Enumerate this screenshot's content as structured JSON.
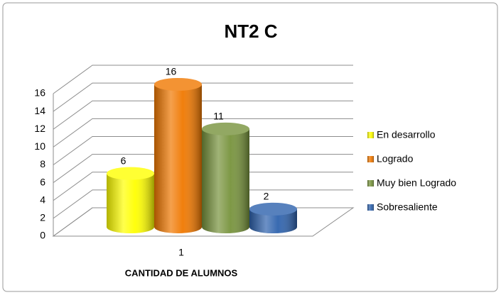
{
  "chart_data": {
    "type": "bar3d",
    "title": "NT2 C",
    "x_label": "CANTIDAD DE ALUMNOS",
    "categories": [
      "1"
    ],
    "series": [
      {
        "name": "En desarrollo",
        "color": "#ffff00",
        "values": [
          6
        ]
      },
      {
        "name": "Logrado",
        "color": "#f07800",
        "values": [
          16
        ]
      },
      {
        "name": "Muy bien Logrado",
        "color": "#77933c",
        "values": [
          11
        ]
      },
      {
        "name": "Sobresaliente",
        "color": "#2e62ad",
        "values": [
          2
        ]
      }
    ],
    "ylim": [
      0,
      16
    ],
    "yticks": [
      0,
      2,
      4,
      6,
      8,
      10,
      12,
      14,
      16
    ],
    "grid": true,
    "legend": "right"
  }
}
